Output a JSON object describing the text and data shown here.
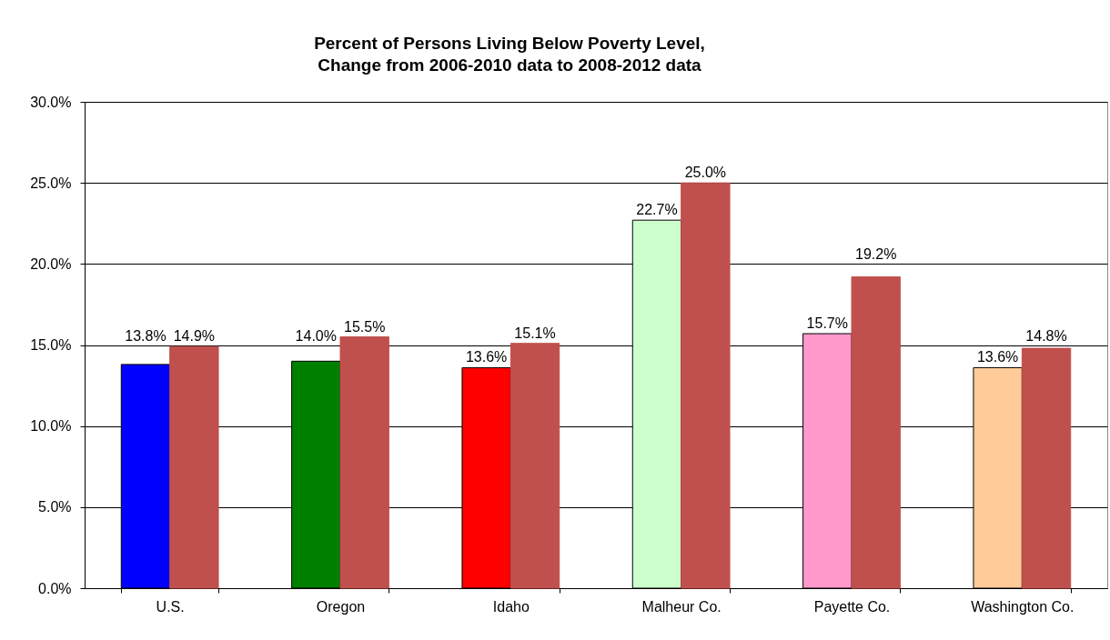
{
  "chart_data": {
    "type": "bar",
    "title": "Percent of Persons Living Below Poverty Level,\nChange from 2006-2010 data to  2008-2012 data",
    "categories": [
      "U.S.",
      "Oregon",
      "Idaho",
      "Malheur Co.",
      "Payette Co.",
      "Washington Co."
    ],
    "series": [
      {
        "colors": [
          "#0000ff",
          "#008000",
          "#ff0000",
          "#ccffcc",
          "#ff99cc",
          "#ffcc99"
        ],
        "values": [
          13.8,
          14.0,
          13.6,
          22.7,
          15.7,
          13.6
        ],
        "value_labels": [
          "13.8%",
          "14.0%",
          "13.6%",
          "22.7%",
          "15.7%",
          "13.6%"
        ]
      },
      {
        "color": "#c0504d",
        "values": [
          14.9,
          15.5,
          15.1,
          25.0,
          19.2,
          14.8
        ],
        "value_labels": [
          "14.9%",
          "15.5%",
          "15.1%",
          "25.0%",
          "19.2%",
          "14.8%"
        ]
      }
    ],
    "ylim": [
      0,
      30
    ],
    "yticks": [
      {
        "value": 0,
        "label": "0.0%"
      },
      {
        "value": 5,
        "label": "5.0%"
      },
      {
        "value": 10,
        "label": "10.0%"
      },
      {
        "value": 15,
        "label": "15.0%"
      },
      {
        "value": 20,
        "label": "20.0%"
      },
      {
        "value": 25,
        "label": "25.0%"
      },
      {
        "value": 30,
        "label": "30.0%"
      }
    ],
    "grid": "y"
  }
}
